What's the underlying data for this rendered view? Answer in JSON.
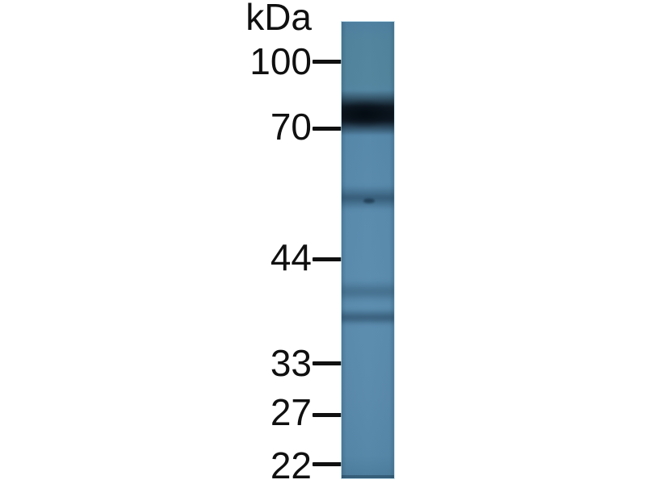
{
  "figure": {
    "type": "western-blot",
    "unit_label": "kDa",
    "markers": [
      {
        "label": "100",
        "kda": 100
      },
      {
        "label": "70",
        "kda": 70
      },
      {
        "label": "44",
        "kda": 44
      },
      {
        "label": "33",
        "kda": 33
      },
      {
        "label": "27",
        "kda": 27
      },
      {
        "label": "22",
        "kda": 22
      }
    ],
    "lane": {
      "lane_count": 1,
      "gel_color": "#5b8cae",
      "strong_band_color": "#0a131b",
      "bands": [
        {
          "approx_kda": "≈75",
          "intensity": "strong"
        },
        {
          "approx_kda": "≈55",
          "intensity": "faint"
        },
        {
          "approx_kda": "≈40",
          "intensity": "very faint"
        },
        {
          "approx_kda": "≈38",
          "intensity": "faint"
        }
      ]
    }
  }
}
